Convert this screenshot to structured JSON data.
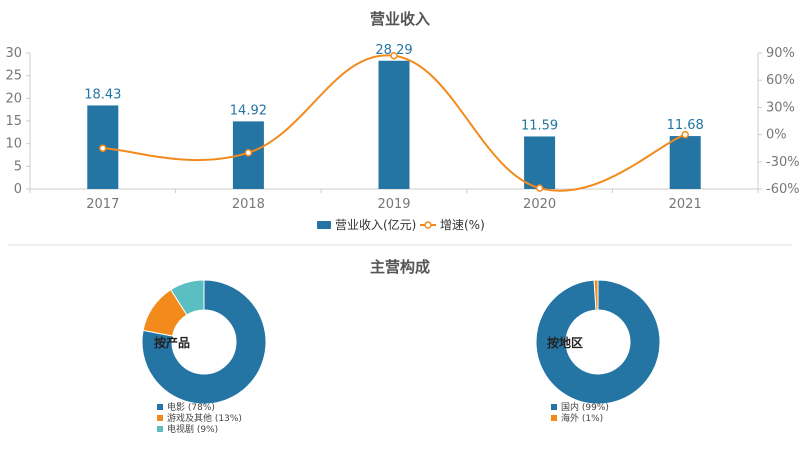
{
  "colors": {
    "bar": "#2475a3",
    "line": "#f28a1c",
    "teal": "#5bbfc1",
    "axis": "#cccccc",
    "title": "#555555"
  },
  "chart_data": [
    {
      "type": "bar",
      "title": "营业收入",
      "categories": [
        "2017",
        "2018",
        "2019",
        "2020",
        "2021"
      ],
      "series": [
        {
          "name": "营业收入(亿元)",
          "values": [
            18.43,
            14.92,
            28.29,
            11.59,
            11.68
          ],
          "labels": [
            "18.43",
            "14.92",
            "28.29",
            "11.59",
            "11.68"
          ]
        },
        {
          "name": "增速(%)",
          "type": "line",
          "axis": "right",
          "values": [
            -15,
            -20,
            87,
            -59,
            0
          ]
        }
      ],
      "ylim": [
        0,
        30
      ],
      "yticks": [
        "0",
        "5",
        "10",
        "15",
        "20",
        "25",
        "30"
      ],
      "y2lim": [
        -60,
        90
      ],
      "y2ticks": [
        "-60%",
        "-30%",
        "0%",
        "30%",
        "60%",
        "90%"
      ],
      "legend": "bottom"
    },
    {
      "type": "pie",
      "title": "主营构成",
      "center_label": "按产品",
      "slices": [
        {
          "name": "电影",
          "value": 78,
          "color": "#2475a3",
          "legend": "电影 (78%)"
        },
        {
          "name": "游戏及其他",
          "value": 13,
          "color": "#f28a1c",
          "legend": "游戏及其他 (13%)"
        },
        {
          "name": "电视剧",
          "value": 9,
          "color": "#5bbfc1",
          "legend": "电视剧 (9%)"
        }
      ]
    },
    {
      "type": "pie",
      "center_label": "按地区",
      "slices": [
        {
          "name": "国内",
          "value": 99,
          "color": "#2475a3",
          "legend": "国内 (99%)"
        },
        {
          "name": "海外",
          "value": 1,
          "color": "#f28a1c",
          "legend": "海外 (1%)"
        }
      ]
    }
  ]
}
